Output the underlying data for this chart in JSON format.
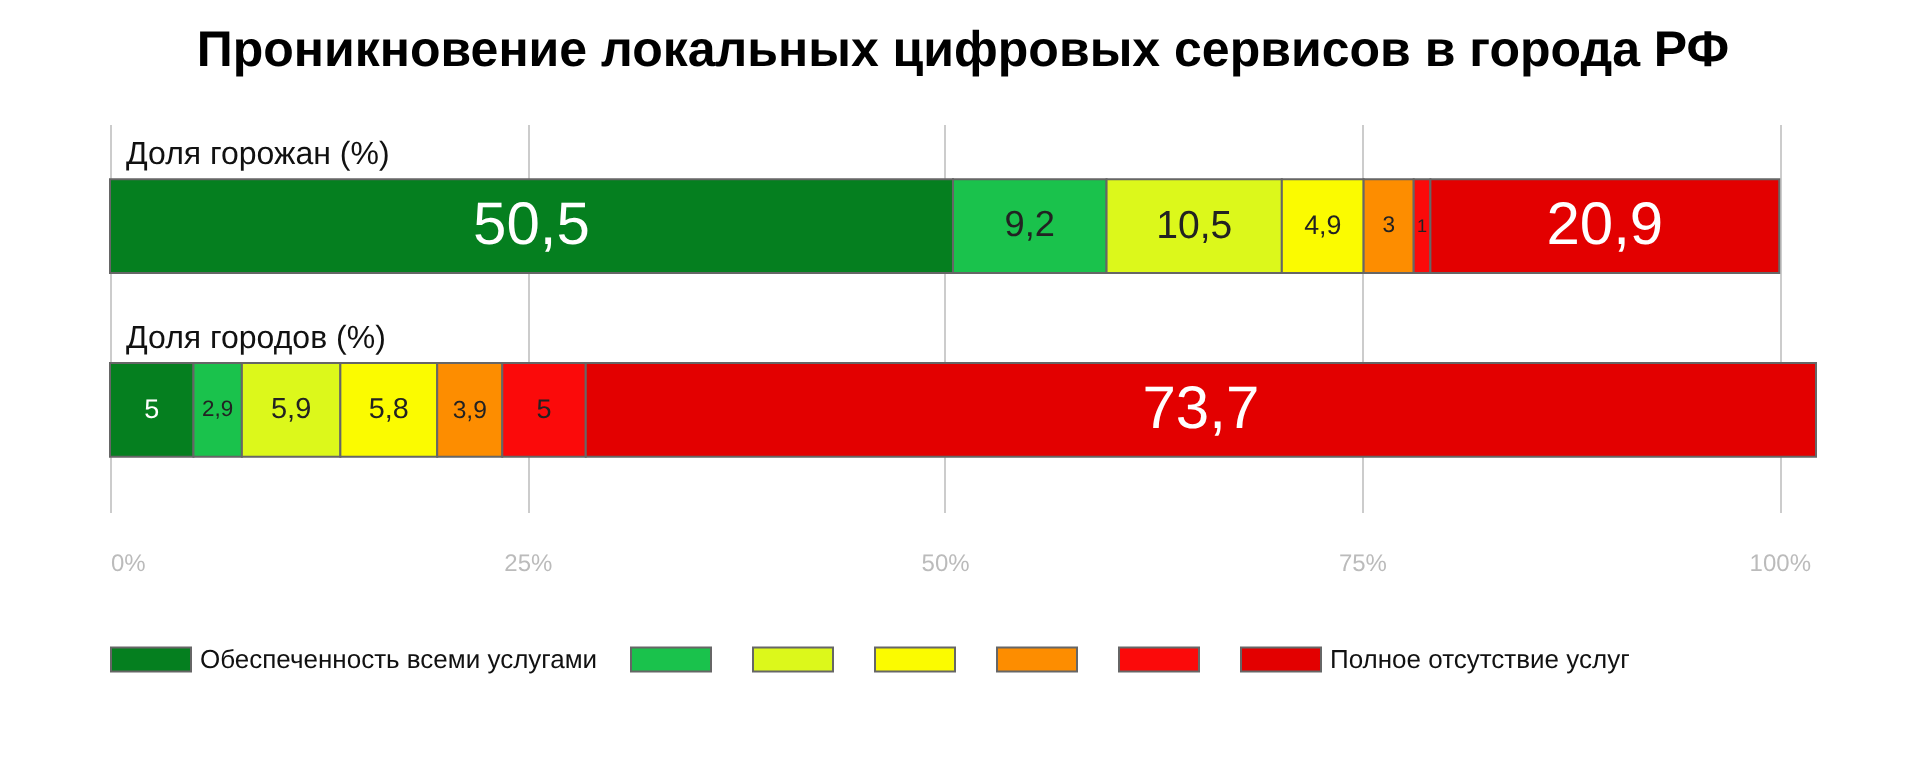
{
  "chart_data": {
    "type": "bar",
    "orientation": "horizontal",
    "stacked": true,
    "title": "Проникновение локальных цифровых сервисов в города РФ",
    "categories": [
      "Доля горожан (%)",
      "Доля городов (%)"
    ],
    "series": [
      {
        "name": "Обеспеченность всеми услугами",
        "color": "#057f1f",
        "values": [
          50.5,
          5
        ],
        "value_labels": [
          "50,5",
          "5"
        ]
      },
      {
        "color": "#1ac24c",
        "values": [
          9.2,
          2.9
        ],
        "value_labels": [
          "9,2",
          "2,9"
        ]
      },
      {
        "color": "#dcf81b",
        "values": [
          10.5,
          5.9
        ],
        "value_labels": [
          "10,5",
          "5,9"
        ]
      },
      {
        "color": "#fbfb00",
        "values": [
          4.9,
          5.8
        ],
        "value_labels": [
          "4,9",
          "5,8"
        ]
      },
      {
        "color": "#fd8d00",
        "values": [
          3,
          3.9
        ],
        "value_labels": [
          "3",
          "3,9"
        ]
      },
      {
        "color": "#fb0a0a",
        "values": [
          1,
          5
        ],
        "value_labels": [
          "1",
          "5"
        ]
      },
      {
        "name": "Полное отсутствие услуг",
        "color": "#e30000",
        "values": [
          20.9,
          73.7
        ],
        "value_labels": [
          "20,9",
          "73,7"
        ]
      }
    ],
    "xlim": [
      0,
      102.2
    ],
    "xticks": [
      {
        "value": 0,
        "label": "0%"
      },
      {
        "value": 25,
        "label": "25%"
      },
      {
        "value": 50,
        "label": "50%"
      },
      {
        "value": 75,
        "label": "75%"
      },
      {
        "value": 100,
        "label": "100%"
      }
    ],
    "grid": "x",
    "legend": "bottom"
  }
}
